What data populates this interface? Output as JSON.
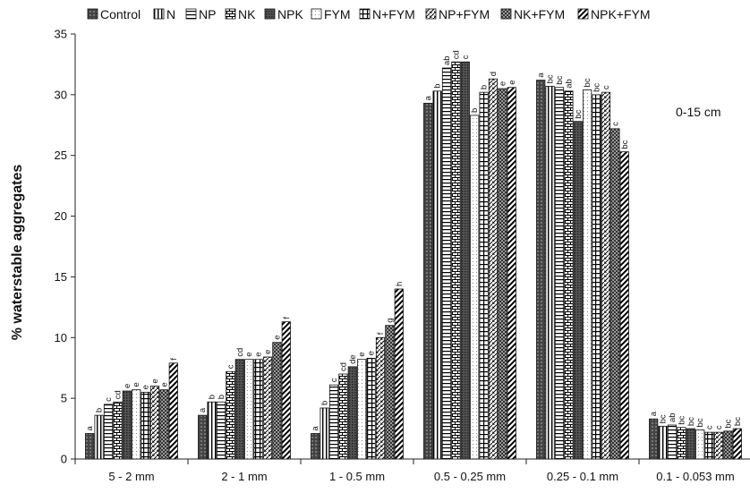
{
  "chart_data": {
    "type": "bar",
    "ylabel": "% waterstable aggregates",
    "annotation": "0-15 cm",
    "ylim": [
      0,
      35
    ],
    "yticks": [
      0,
      5,
      10,
      15,
      20,
      25,
      30,
      35
    ],
    "grid": false,
    "legend_position": "top",
    "categories": [
      "5 - 2 mm",
      "2 - 1 mm",
      "1 - 0.5 mm",
      "0.5 - 0.25 mm",
      "0.25 - 0.1 mm",
      "0.1 - 0.053 mm"
    ],
    "series": [
      {
        "name": "Control",
        "values": [
          2.1,
          3.6,
          2.1,
          29.3,
          31.2,
          3.3
        ],
        "letters": [
          "a",
          "a",
          "a",
          "a",
          "a",
          "a"
        ]
      },
      {
        "name": "N",
        "values": [
          3.6,
          4.7,
          4.2,
          30.3,
          30.7,
          2.7
        ],
        "letters": [
          "b",
          "b",
          "b",
          "b",
          "bc",
          "bc"
        ]
      },
      {
        "name": "NP",
        "values": [
          4.5,
          4.7,
          6.1,
          32.2,
          30.6,
          2.8
        ],
        "letters": [
          "c",
          "b",
          "c",
          "ab",
          "bc",
          "ab"
        ]
      },
      {
        "name": "NK",
        "values": [
          4.7,
          7.2,
          7.0,
          32.7,
          30.3,
          2.6
        ],
        "letters": [
          "cd",
          "c",
          "cd",
          "cd",
          "ab",
          "bc"
        ]
      },
      {
        "name": "NPK",
        "values": [
          5.6,
          8.2,
          7.6,
          32.7,
          27.8,
          2.5
        ],
        "letters": [
          "e",
          "cd",
          "de",
          "c",
          "bc",
          "bc"
        ]
      },
      {
        "name": "FYM",
        "values": [
          5.7,
          8.2,
          8.2,
          28.3,
          30.4,
          2.4
        ],
        "letters": [
          "e",
          "e",
          "e",
          "b",
          "bc",
          "bc"
        ]
      },
      {
        "name": "N+FYM",
        "values": [
          5.5,
          8.2,
          8.3,
          30.2,
          30.0,
          2.2
        ],
        "letters": [
          "e",
          "e",
          "e",
          "b",
          "bc",
          "c"
        ]
      },
      {
        "name": "NP+FYM",
        "values": [
          6.0,
          8.4,
          10.0,
          31.3,
          30.2,
          2.2
        ],
        "letters": [
          "e",
          "e",
          "f",
          "d",
          "c",
          "c"
        ]
      },
      {
        "name": "NK+FYM",
        "values": [
          5.7,
          9.6,
          11.0,
          30.5,
          27.2,
          2.3
        ],
        "letters": [
          "e",
          "e",
          "g",
          "e",
          "c",
          "bc"
        ]
      },
      {
        "name": "NPK+FYM",
        "values": [
          7.9,
          11.3,
          14.0,
          30.6,
          25.3,
          2.5
        ],
        "letters": [
          "f",
          "f",
          "h",
          "e",
          "bc",
          "bc"
        ]
      }
    ]
  }
}
